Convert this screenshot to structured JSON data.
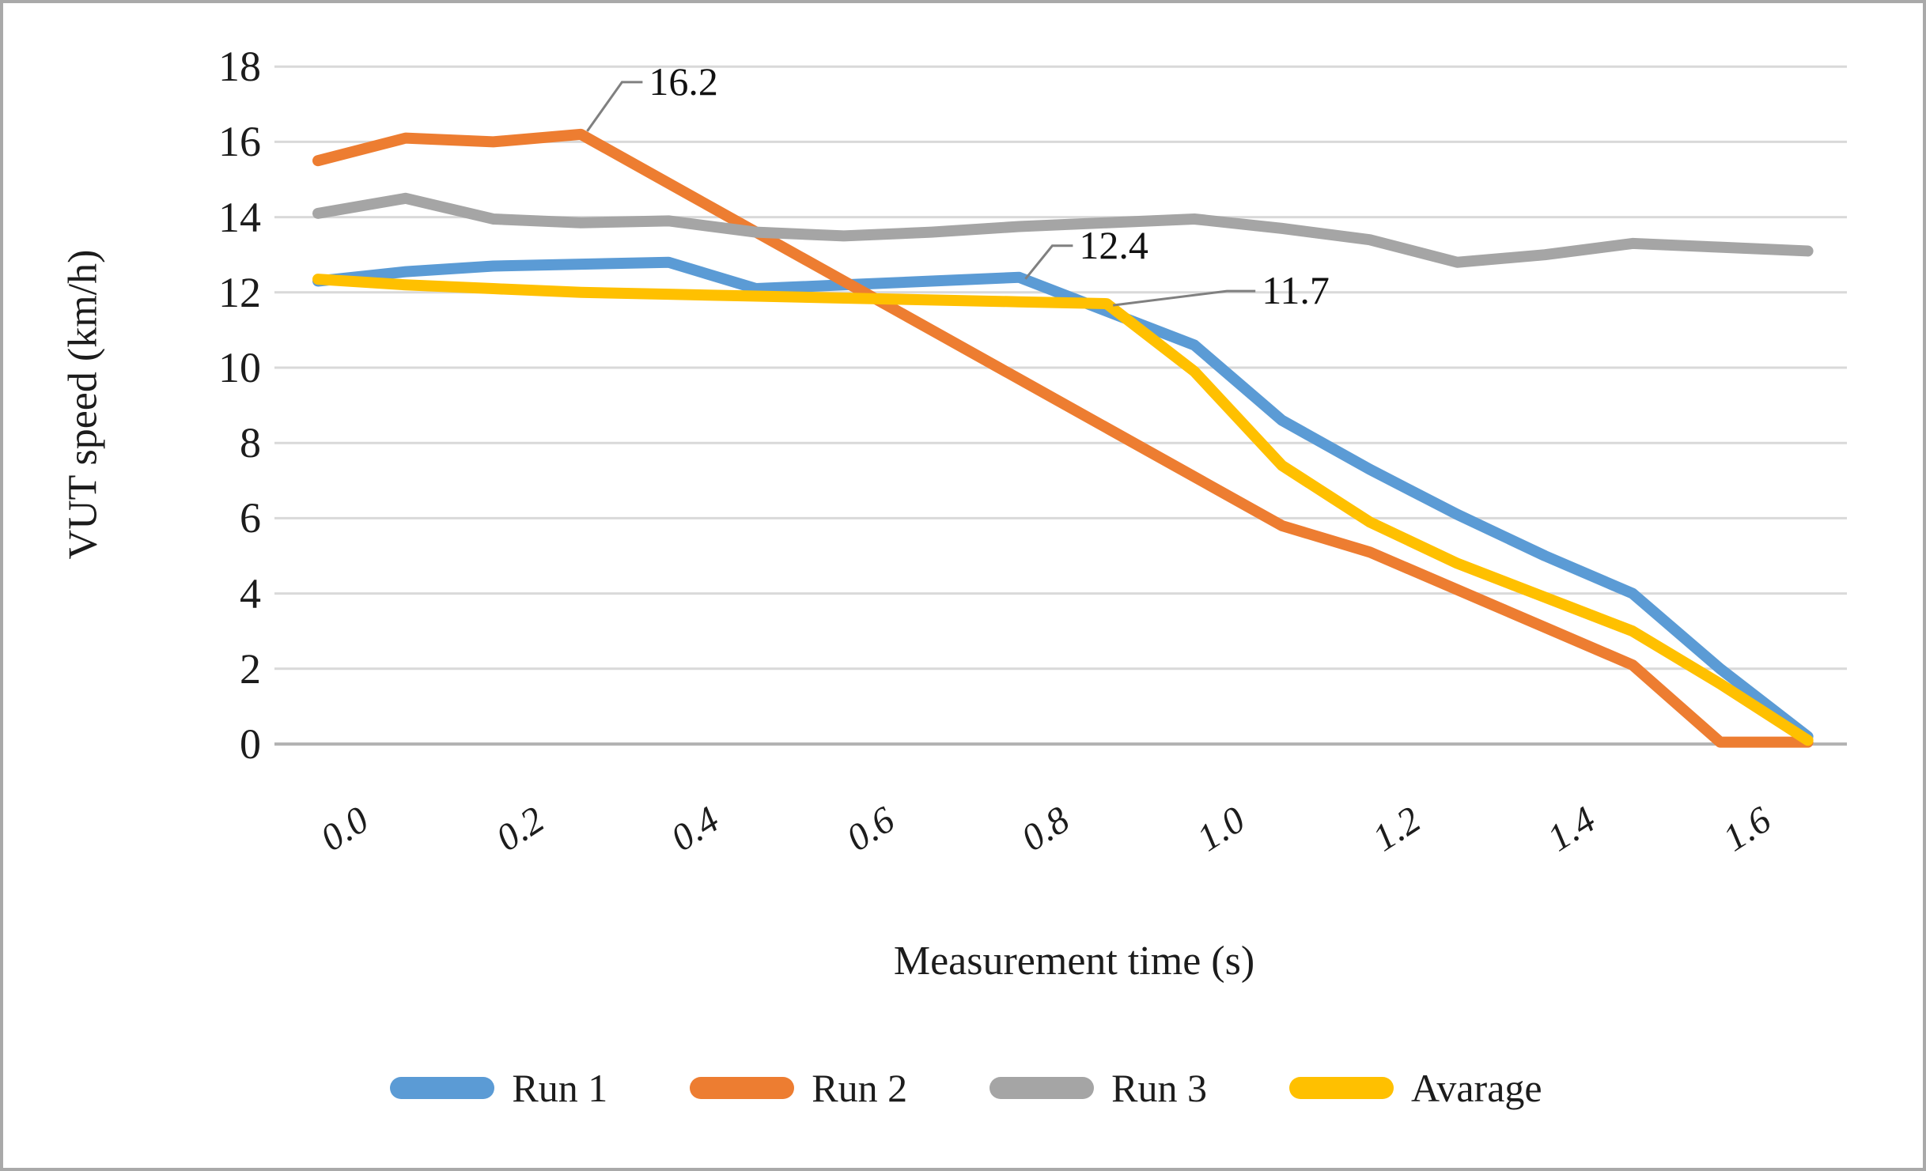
{
  "chart_data": {
    "type": "line",
    "title": "",
    "xlabel": "Measurement time (s)",
    "ylabel": "VUT speed (km/h)",
    "x_tick_labels": [
      "0.0",
      "0.2",
      "0.4",
      "0.6",
      "0.8",
      "1.0",
      "1.2",
      "1.4",
      "1.6"
    ],
    "x_tick_values": [
      0.0,
      0.2,
      0.4,
      0.6,
      0.8,
      1.0,
      1.2,
      1.4,
      1.6
    ],
    "y_tick_labels": [
      "0",
      "2",
      "4",
      "6",
      "8",
      "10",
      "12",
      "14",
      "16",
      "18"
    ],
    "y_tick_values": [
      0,
      2,
      4,
      6,
      8,
      10,
      12,
      14,
      16,
      18
    ],
    "ylim": [
      0,
      18
    ],
    "xlim": [
      -0.05,
      1.75
    ],
    "grid": "horizontal",
    "legend_position": "bottom",
    "x": [
      0.0,
      0.1,
      0.2,
      0.3,
      0.4,
      0.5,
      0.6,
      0.7,
      0.8,
      0.9,
      1.0,
      1.1,
      1.2,
      1.3,
      1.4,
      1.5,
      1.6,
      1.7
    ],
    "series": [
      {
        "name": "Run 1",
        "color": "#5B9BD5",
        "values": [
          12.3,
          12.55,
          12.7,
          12.75,
          12.8,
          12.1,
          12.2,
          12.3,
          12.4,
          11.5,
          10.6,
          8.6,
          7.3,
          6.1,
          5.0,
          4.0,
          2.0,
          0.2
        ]
      },
      {
        "name": "Run 2",
        "color": "#ED7D31",
        "values": [
          15.5,
          16.1,
          16.0,
          16.2,
          14.9,
          13.6,
          12.3,
          11.0,
          9.7,
          8.4,
          7.1,
          5.8,
          5.1,
          4.1,
          3.1,
          2.1,
          0.05,
          0.05
        ]
      },
      {
        "name": "Run 3",
        "color": "#A5A5A5",
        "values": [
          14.1,
          14.5,
          13.95,
          13.85,
          13.9,
          13.6,
          13.5,
          13.6,
          13.75,
          13.85,
          13.95,
          13.7,
          13.4,
          12.8,
          13.0,
          13.3,
          13.2,
          13.1
        ]
      },
      {
        "name": "Avarage",
        "color": "#FFC000",
        "values": [
          12.35,
          12.2,
          12.1,
          12.0,
          11.95,
          11.9,
          11.85,
          11.8,
          11.75,
          11.7,
          9.9,
          7.4,
          5.9,
          4.8,
          3.9,
          3.0,
          1.6,
          0.1
        ]
      }
    ],
    "annotations": [
      {
        "text": "16.2",
        "series": "Run 2",
        "t": 0.3,
        "v": 16.2
      },
      {
        "text": "12.4",
        "series": "Run 1",
        "t": 0.8,
        "v": 12.4
      },
      {
        "text": "11.7",
        "series": "Avarage",
        "t": 0.9,
        "v": 11.7
      }
    ],
    "colors": {
      "gridline": "#d9d9d9",
      "axis_line": "#b3b3b3",
      "leader_line": "#808080",
      "text": "#1c1c1c"
    }
  }
}
